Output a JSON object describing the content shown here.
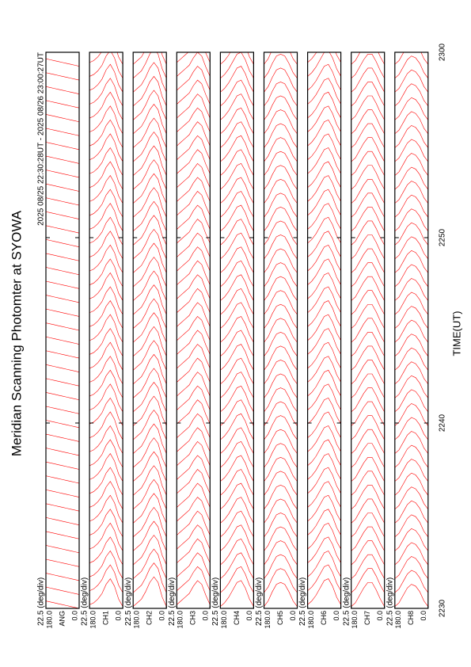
{
  "title": "Meridian Scanning Photomter at SYOWA",
  "subtitle": "2025 08/25 22:30:28UT - 2025 08/26 23:00:27UT",
  "xlabel": "TIME(UT)",
  "xlim": [
    30,
    60
  ],
  "xticks": [
    {
      "value": 30,
      "label": "2230"
    },
    {
      "value": 40,
      "label": "2240"
    },
    {
      "value": 50,
      "label": "2250"
    },
    {
      "value": 60,
      "label": "2300"
    }
  ],
  "scan_times": [
    30,
    30.75,
    31.5,
    32.25,
    33,
    33.75,
    34.5,
    35.25,
    36,
    36.75,
    37.5,
    38.25,
    39,
    39.75,
    40.5,
    41.25,
    42,
    42.75,
    43.5,
    44.25,
    45,
    45.75,
    46.5,
    47.25,
    48,
    48.75,
    49.5,
    50.25,
    51,
    51.75,
    52.5,
    53.25,
    54,
    54.75,
    55.5,
    56.25,
    57,
    57.75,
    58.5,
    59.25
  ],
  "chart_data": [
    {
      "type": "line",
      "ylabel": "ANG",
      "scale": "22.5 (deg/div)",
      "ylim": [
        0,
        180
      ],
      "yticks": [
        {
          "value": 0,
          "label": "0.0"
        },
        {
          "value": 180,
          "label": "180.0"
        }
      ],
      "color": "#ff0000",
      "angles": [
        0,
        22.5,
        45,
        67.5,
        90,
        112.5,
        135,
        157.5,
        180
      ],
      "profile": [
        0,
        0.05,
        0.1,
        0.15,
        0.2,
        0.25,
        0.3,
        0.35,
        0.4
      ]
    },
    {
      "type": "line",
      "ylabel": "CH1",
      "scale": "22.5 (deg/div)",
      "ylim": [
        0,
        180
      ],
      "yticks": [
        {
          "value": 0,
          "label": "0.0"
        },
        {
          "value": 180,
          "label": "180.0"
        }
      ],
      "color": "#ff0000",
      "angles": [
        0,
        22.5,
        45,
        67.5,
        90,
        112.5,
        135,
        157.5,
        180
      ],
      "profile": [
        0.1,
        0.5,
        1.2,
        1.6,
        1.3,
        0.8,
        0.5,
        0.3,
        0.2
      ]
    },
    {
      "type": "line",
      "ylabel": "CH2",
      "scale": "22.5 (deg/div)",
      "ylim": [
        0,
        180
      ],
      "yticks": [
        {
          "value": 0,
          "label": "0.0"
        },
        {
          "value": 180,
          "label": "180.0"
        }
      ],
      "color": "#ff0000",
      "angles": [
        0,
        22.5,
        45,
        67.5,
        90,
        112.5,
        135,
        157.5,
        180
      ],
      "profile": [
        0.1,
        0.6,
        1.4,
        1.7,
        1.4,
        0.9,
        0.5,
        0.3,
        0.1
      ]
    },
    {
      "type": "line",
      "ylabel": "CH3",
      "scale": "22.5 (deg/div)",
      "ylim": [
        0,
        180
      ],
      "yticks": [
        {
          "value": 0,
          "label": "0.0"
        },
        {
          "value": 180,
          "label": "180.0"
        }
      ],
      "color": "#ff0000",
      "angles": [
        0,
        22.5,
        45,
        67.5,
        90,
        112.5,
        135,
        157.5,
        180
      ],
      "profile": [
        0.2,
        0.7,
        1.3,
        1.5,
        1.2,
        0.8,
        0.6,
        0.4,
        0.2
      ]
    },
    {
      "type": "line",
      "ylabel": "CH4",
      "scale": "22.5 (deg/div)",
      "ylim": [
        0,
        180
      ],
      "yticks": [
        {
          "value": 0,
          "label": "0.0"
        },
        {
          "value": 180,
          "label": "180.0"
        }
      ],
      "color": "#ff0000",
      "angles": [
        0,
        22.5,
        45,
        67.5,
        90,
        112.5,
        135,
        157.5,
        180
      ],
      "profile": [
        0.1,
        0.5,
        1.1,
        1.5,
        1.4,
        1.0,
        0.6,
        0.3,
        0.1
      ]
    },
    {
      "type": "line",
      "ylabel": "CH5",
      "scale": "22.5 (deg/div)",
      "ylim": [
        0,
        180
      ],
      "yticks": [
        {
          "value": 0,
          "label": "0.0"
        },
        {
          "value": 180,
          "label": "180.0"
        }
      ],
      "color": "#ff0000",
      "angles": [
        0,
        22.5,
        45,
        67.5,
        90,
        112.5,
        135,
        157.5,
        180
      ],
      "profile": [
        0.1,
        0.4,
        0.9,
        1.3,
        1.4,
        1.3,
        0.9,
        0.4,
        0.1
      ]
    },
    {
      "type": "line",
      "ylabel": "CH6",
      "scale": "22.5 (deg/div)",
      "ylim": [
        0,
        180
      ],
      "yticks": [
        {
          "value": 0,
          "label": "0.0"
        },
        {
          "value": 180,
          "label": "180.0"
        }
      ],
      "color": "#ff0000",
      "angles": [
        0,
        22.5,
        45,
        67.5,
        90,
        112.5,
        135,
        157.5,
        180
      ],
      "profile": [
        0.2,
        0.6,
        1.2,
        1.6,
        1.5,
        1.1,
        0.7,
        0.4,
        0.2
      ]
    },
    {
      "type": "line",
      "ylabel": "CH7",
      "scale": "22.5 (deg/div)",
      "ylim": [
        0,
        180
      ],
      "yticks": [
        {
          "value": 0,
          "label": "0.0"
        },
        {
          "value": 180,
          "label": "180.0"
        }
      ],
      "color": "#ff0000",
      "angles": [
        0,
        22.5,
        45,
        67.5,
        90,
        112.5,
        135,
        157.5,
        180
      ],
      "profile": [
        0.1,
        0.5,
        1.0,
        1.4,
        1.4,
        1.1,
        0.7,
        0.3,
        0.1
      ]
    },
    {
      "type": "line",
      "ylabel": "CH8",
      "scale": "22.5 (deg/div)",
      "ylim": [
        0,
        180
      ],
      "yticks": [
        {
          "value": 0,
          "label": "0.0"
        },
        {
          "value": 180,
          "label": "180.0"
        }
      ],
      "color": "#ff0000",
      "angles": [
        0,
        22.5,
        45,
        67.5,
        90,
        112.5,
        135,
        157.5,
        180
      ],
      "profile": [
        0.1,
        0.4,
        0.9,
        1.2,
        1.3,
        1.1,
        0.7,
        0.3,
        0.1
      ]
    }
  ]
}
